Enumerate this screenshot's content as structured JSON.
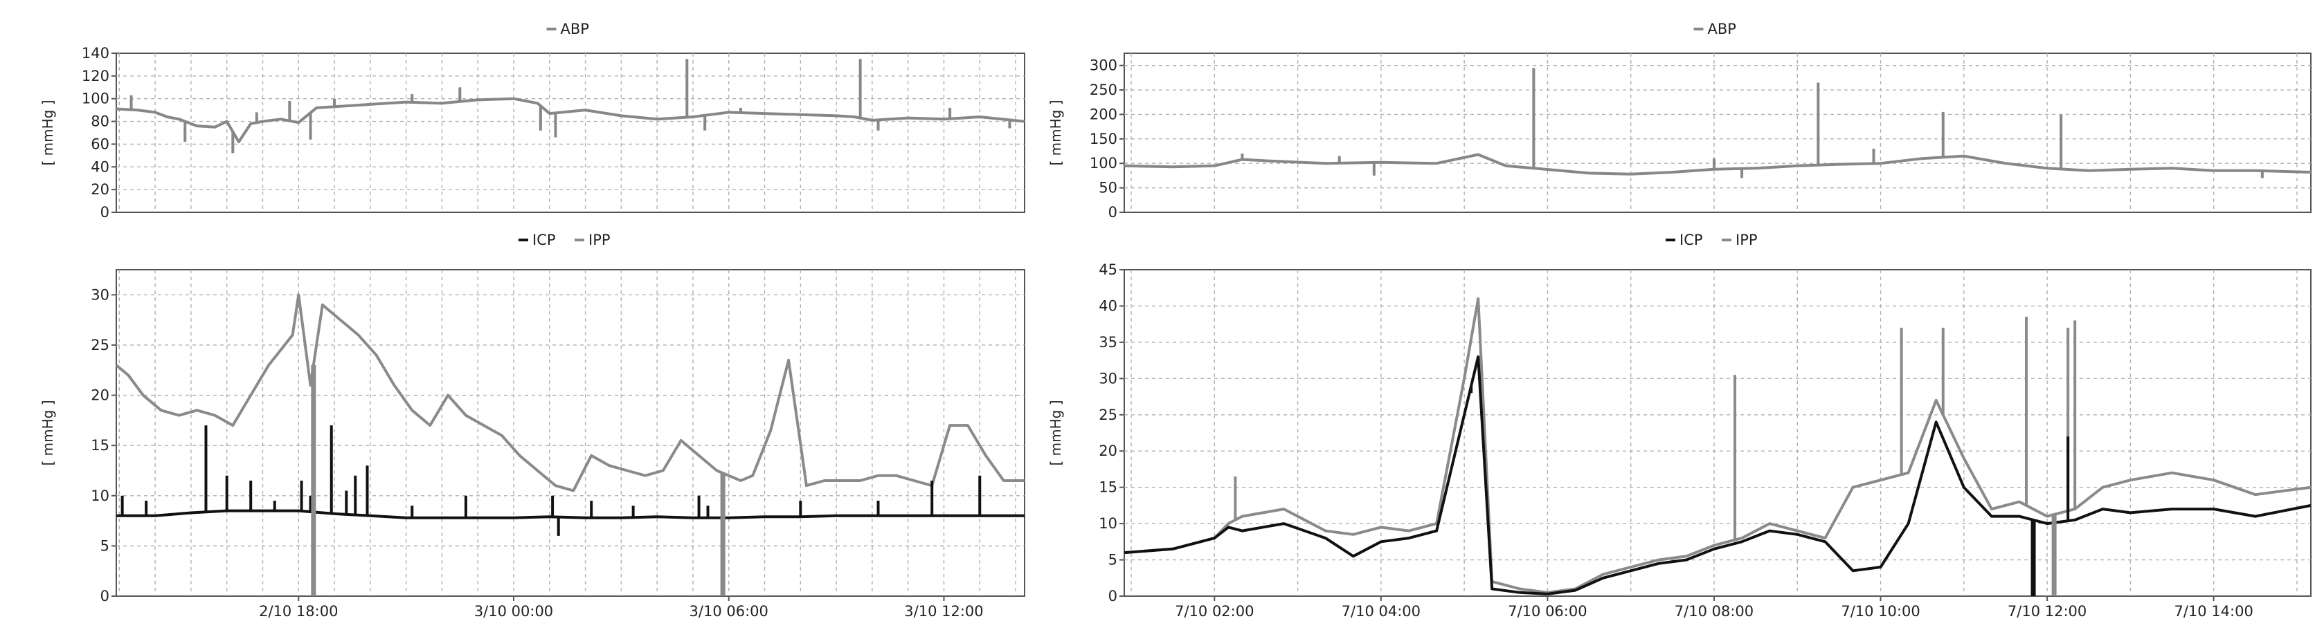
{
  "colors": {
    "ABP": "#878787",
    "ICP": "#111111",
    "IPP": "#8a8a8a"
  },
  "chart_data": [
    {
      "id": "left-abp",
      "type": "line",
      "legend": [
        {
          "name": "ABP",
          "color": "#878787"
        }
      ],
      "ylabel": "[ mmHg ]",
      "ylim": [
        0,
        140
      ],
      "yticks": [
        0,
        20,
        40,
        60,
        80,
        100,
        120,
        140
      ],
      "xlim": [
        "2/10 12:55",
        "3/10 14:15"
      ],
      "xticks": [],
      "grid": true,
      "series": [
        {
          "name": "ABP",
          "x": [
            "2/10 12:55",
            "2/10 13:30",
            "2/10 14:00",
            "2/10 14:20",
            "2/10 14:40",
            "2/10 15:10",
            "2/10 15:40",
            "2/10 16:00",
            "2/10 16:20",
            "2/10 16:40",
            "2/10 17:00",
            "2/10 17:30",
            "2/10 18:00",
            "2/10 18:30",
            "2/10 19:00",
            "2/10 19:30",
            "2/10 20:00",
            "2/10 21:00",
            "2/10 22:00",
            "2/10 23:00",
            "3/10 00:00",
            "3/10 00:40",
            "3/10 01:00",
            "3/10 02:00",
            "3/10 03:00",
            "3/10 04:00",
            "3/10 05:00",
            "3/10 05:30",
            "3/10 06:00",
            "3/10 07:00",
            "3/10 08:00",
            "3/10 09:00",
            "3/10 09:30",
            "3/10 10:00",
            "3/10 11:00",
            "3/10 12:00",
            "3/10 13:00",
            "3/10 14:15"
          ],
          "y": [
            91,
            90,
            88,
            84,
            82,
            76,
            75,
            80,
            62,
            78,
            80,
            82,
            79,
            92,
            93,
            94,
            95,
            97,
            96,
            99,
            100,
            96,
            87,
            90,
            85,
            82,
            84,
            86,
            88,
            87,
            86,
            85,
            84,
            81,
            83,
            82,
            84,
            80
          ]
        }
      ],
      "events": [
        {
          "series": "ABP",
          "x": [
            "2/10 13:20",
            "2/10 14:50",
            "2/10 16:10",
            "2/10 16:50",
            "2/10 17:45",
            "2/10 18:20",
            "2/10 19:00",
            "2/10 21:10",
            "2/10 22:30",
            "3/10 00:45",
            "3/10 01:10",
            "3/10 04:50",
            "3/10 05:20",
            "3/10 06:20",
            "3/10 09:40",
            "3/10 10:10",
            "3/10 12:10",
            "3/10 13:50"
          ],
          "y": [
            103,
            62,
            52,
            88,
            98,
            64,
            100,
            104,
            110,
            72,
            66,
            135,
            72,
            92,
            135,
            72,
            92,
            74
          ]
        }
      ]
    },
    {
      "id": "left-icp-ipp",
      "type": "line",
      "legend": [
        {
          "name": "ICP",
          "color": "#111111"
        },
        {
          "name": "IPP",
          "color": "#8a8a8a"
        }
      ],
      "ylabel": "[ mmHg ]",
      "ylim": [
        0,
        32.5
      ],
      "yticks": [
        0,
        5,
        10,
        15,
        20,
        25,
        30
      ],
      "xlim": [
        "2/10 12:55",
        "3/10 14:15"
      ],
      "xticks": [
        "2/10 18:00",
        "3/10 00:00",
        "3/10 06:00",
        "3/10 12:00"
      ],
      "grid": true,
      "series": [
        {
          "name": "IPP",
          "x": [
            "2/10 12:55",
            "2/10 13:15",
            "2/10 13:40",
            "2/10 14:10",
            "2/10 14:40",
            "2/10 15:10",
            "2/10 15:40",
            "2/10 16:10",
            "2/10 16:40",
            "2/10 17:10",
            "2/10 17:30",
            "2/10 17:50",
            "2/10 18:00",
            "2/10 18:20",
            "2/10 18:40",
            "2/10 19:10",
            "2/10 19:40",
            "2/10 20:10",
            "2/10 20:40",
            "2/10 21:10",
            "2/10 21:40",
            "2/10 22:10",
            "2/10 22:40",
            "2/10 23:10",
            "2/10 23:40",
            "3/10 00:10",
            "3/10 00:40",
            "3/10 01:10",
            "3/10 01:40",
            "3/10 02:10",
            "3/10 02:40",
            "3/10 03:10",
            "3/10 03:40",
            "3/10 04:10",
            "3/10 04:40",
            "3/10 05:10",
            "3/10 05:40",
            "3/10 06:00",
            "3/10 06:20",
            "3/10 06:40",
            "3/10 07:10",
            "3/10 07:40",
            "3/10 08:10",
            "3/10 08:40",
            "3/10 09:10",
            "3/10 09:40",
            "3/10 10:10",
            "3/10 10:40",
            "3/10 11:10",
            "3/10 11:40",
            "3/10 12:10",
            "3/10 12:40",
            "3/10 13:10",
            "3/10 13:40",
            "3/10 14:15"
          ],
          "y": [
            23,
            22,
            20,
            18.5,
            18,
            18.5,
            18,
            17,
            20,
            23,
            24.5,
            26,
            30,
            21,
            29,
            27.5,
            26,
            24,
            21,
            18.5,
            17,
            20,
            18,
            17,
            16,
            14,
            12.5,
            11,
            10.5,
            14,
            13,
            12.5,
            12,
            12.5,
            15.5,
            14,
            12.5,
            12,
            11.5,
            12,
            16.5,
            23.5,
            11,
            11.5,
            11.5,
            11.5,
            12,
            12,
            11.5,
            11,
            17,
            17,
            14,
            11.5,
            11.5
          ]
        },
        {
          "name": "ICP",
          "x": [
            "2/10 12:55",
            "2/10 14:00",
            "2/10 15:00",
            "2/10 16:00",
            "2/10 17:00",
            "2/10 18:00",
            "2/10 19:00",
            "2/10 20:00",
            "2/10 21:00",
            "2/10 22:00",
            "2/10 23:00",
            "3/10 00:00",
            "3/10 01:00",
            "3/10 02:00",
            "3/10 03:00",
            "3/10 04:00",
            "3/10 05:00",
            "3/10 06:00",
            "3/10 07:00",
            "3/10 08:00",
            "3/10 09:00",
            "3/10 10:00",
            "3/10 11:00",
            "3/10 12:00",
            "3/10 13:00",
            "3/10 14:15"
          ],
          "y": [
            8,
            8,
            8.3,
            8.5,
            8.5,
            8.5,
            8.2,
            8,
            7.8,
            7.8,
            7.8,
            7.8,
            7.9,
            7.8,
            7.8,
            7.9,
            7.8,
            7.8,
            7.9,
            7.9,
            8,
            8,
            8,
            8,
            8,
            8
          ]
        }
      ],
      "events": [
        {
          "series": "ICP",
          "x": [
            "2/10 13:05",
            "2/10 13:45",
            "2/10 15:25",
            "2/10 16:00",
            "2/10 16:40",
            "2/10 17:20",
            "2/10 18:05",
            "2/10 18:20",
            "2/10 18:55",
            "2/10 19:20",
            "2/10 19:35",
            "2/10 19:55",
            "2/10 21:10",
            "2/10 22:40",
            "3/10 01:05",
            "3/10 01:15",
            "3/10 02:10",
            "3/10 03:20",
            "3/10 05:10",
            "3/10 05:25",
            "3/10 08:00",
            "3/10 10:10",
            "3/10 11:40",
            "3/10 13:00"
          ],
          "y": [
            10,
            9.5,
            17,
            12,
            11.5,
            9.5,
            11.5,
            10,
            17,
            10.5,
            12,
            13,
            9,
            10,
            10,
            6,
            9.5,
            9,
            10,
            9,
            9.5,
            9.5,
            11.5,
            12
          ]
        },
        {
          "series": "IPP",
          "x": [
            "2/10 18:25",
            "3/10 05:50"
          ],
          "y": [
            0,
            0
          ]
        }
      ]
    },
    {
      "id": "right-abp",
      "type": "line",
      "legend": [
        {
          "name": "ABP",
          "color": "#878787"
        }
      ],
      "ylabel": "[ mmHg ]",
      "ylim": [
        0,
        325
      ],
      "yticks": [
        0,
        50,
        100,
        150,
        200,
        250,
        300
      ],
      "xlim": [
        "7/10 00:55",
        "7/10 15:10"
      ],
      "xticks": [],
      "grid": true,
      "series": [
        {
          "name": "ABP",
          "x": [
            "7/10 00:55",
            "7/10 01:30",
            "7/10 02:00",
            "7/10 02:20",
            "7/10 02:40",
            "7/10 03:20",
            "7/10 04:00",
            "7/10 04:40",
            "7/10 05:10",
            "7/10 05:30",
            "7/10 05:50",
            "7/10 06:30",
            "7/10 07:00",
            "7/10 07:30",
            "7/10 08:00",
            "7/10 08:30",
            "7/10 09:00",
            "7/10 09:30",
            "7/10 10:00",
            "7/10 10:30",
            "7/10 11:00",
            "7/10 11:30",
            "7/10 12:00",
            "7/10 12:30",
            "7/10 13:00",
            "7/10 13:30",
            "7/10 14:00",
            "7/10 14:30",
            "7/10 15:10"
          ],
          "y": [
            95,
            93,
            95,
            108,
            105,
            100,
            102,
            100,
            118,
            95,
            90,
            80,
            78,
            82,
            88,
            90,
            95,
            98,
            100,
            110,
            115,
            100,
            90,
            85,
            88,
            90,
            85,
            85,
            82
          ]
        }
      ],
      "events": [
        {
          "series": "ABP",
          "x": [
            "7/10 02:20",
            "7/10 03:30",
            "7/10 03:55",
            "7/10 05:50",
            "7/10 08:00",
            "7/10 08:20",
            "7/10 09:15",
            "7/10 09:55",
            "7/10 10:45",
            "7/10 12:10",
            "7/10 14:35"
          ],
          "y": [
            120,
            115,
            75,
            295,
            110,
            70,
            265,
            130,
            205,
            200,
            70
          ]
        }
      ]
    },
    {
      "id": "right-icp-ipp",
      "type": "line",
      "legend": [
        {
          "name": "ICP",
          "color": "#111111"
        },
        {
          "name": "IPP",
          "color": "#8a8a8a"
        }
      ],
      "ylabel": "[ mmHg ]",
      "ylim": [
        0,
        45
      ],
      "yticks": [
        0,
        5,
        10,
        15,
        20,
        25,
        30,
        35,
        40,
        45
      ],
      "xlim": [
        "7/10 00:55",
        "7/10 15:10"
      ],
      "xticks": [
        "7/10 02:00",
        "7/10 04:00",
        "7/10 06:00",
        "7/10 08:00",
        "7/10 10:00",
        "7/10 12:00",
        "7/10 14:00"
      ],
      "grid": true,
      "series": [
        {
          "name": "IPP",
          "x": [
            "7/10 00:55",
            "7/10 01:30",
            "7/10 02:00",
            "7/10 02:10",
            "7/10 02:20",
            "7/10 02:50",
            "7/10 03:20",
            "7/10 03:40",
            "7/10 04:00",
            "7/10 04:20",
            "7/10 04:40",
            "7/10 05:00",
            "7/10 05:10",
            "7/10 05:20",
            "7/10 05:40",
            "7/10 06:00",
            "7/10 06:20",
            "7/10 06:40",
            "7/10 07:00",
            "7/10 07:20",
            "7/10 07:40",
            "7/10 08:00",
            "7/10 08:20",
            "7/10 08:40",
            "7/10 09:00",
            "7/10 09:20",
            "7/10 09:40",
            "7/10 10:00",
            "7/10 10:20",
            "7/10 10:40",
            "7/10 11:00",
            "7/10 11:20",
            "7/10 11:40",
            "7/10 12:00",
            "7/10 12:20",
            "7/10 12:40",
            "7/10 13:00",
            "7/10 13:30",
            "7/10 14:00",
            "7/10 14:30",
            "7/10 15:10"
          ],
          "y": [
            6,
            6.5,
            8,
            10,
            11,
            12,
            9,
            8.5,
            9.5,
            9,
            10,
            30,
            41,
            2,
            1,
            0.5,
            1,
            3,
            4,
            5,
            5.5,
            7,
            8,
            10,
            9,
            8,
            15,
            16,
            17,
            27,
            19,
            12,
            13,
            11,
            12,
            15,
            16,
            17,
            16,
            14,
            15
          ]
        },
        {
          "name": "ICP",
          "x": [
            "7/10 00:55",
            "7/10 01:30",
            "7/10 02:00",
            "7/10 02:10",
            "7/10 02:20",
            "7/10 02:50",
            "7/10 03:20",
            "7/10 03:40",
            "7/10 04:00",
            "7/10 04:20",
            "7/10 04:40",
            "7/10 05:00",
            "7/10 05:10",
            "7/10 05:20",
            "7/10 05:40",
            "7/10 06:00",
            "7/10 06:20",
            "7/10 06:40",
            "7/10 07:00",
            "7/10 07:20",
            "7/10 07:40",
            "7/10 08:00",
            "7/10 08:20",
            "7/10 08:40",
            "7/10 09:00",
            "7/10 09:20",
            "7/10 09:40",
            "7/10 10:00",
            "7/10 10:20",
            "7/10 10:40",
            "7/10 11:00",
            "7/10 11:20",
            "7/10 11:40",
            "7/10 12:00",
            "7/10 12:20",
            "7/10 12:40",
            "7/10 13:00",
            "7/10 13:30",
            "7/10 14:00",
            "7/10 14:30",
            "7/10 15:10"
          ],
          "y": [
            6,
            6.5,
            8,
            9.5,
            9,
            10,
            8,
            5.5,
            7.5,
            8,
            9,
            25,
            33,
            1,
            0.5,
            0.3,
            0.8,
            2.5,
            3.5,
            4.5,
            5,
            6.5,
            7.5,
            9,
            8.5,
            7.5,
            3.5,
            4,
            10,
            24,
            15,
            11,
            11,
            10,
            10.5,
            12,
            11.5,
            12,
            12,
            11,
            12.5
          ]
        }
      ],
      "events": [
        {
          "series": "IPP",
          "x": [
            "7/10 02:15",
            "7/10 08:15",
            "7/10 10:15",
            "7/10 10:45",
            "7/10 11:45",
            "7/10 12:05",
            "7/10 12:15",
            "7/10 12:20"
          ],
          "y": [
            16.5,
            30.5,
            37,
            37,
            38.5,
            0,
            37,
            38
          ]
        },
        {
          "series": "ICP",
          "x": [
            "7/10 05:05",
            "7/10 11:50",
            "7/10 12:15"
          ],
          "y": [
            28,
            0,
            22
          ]
        }
      ]
    }
  ]
}
